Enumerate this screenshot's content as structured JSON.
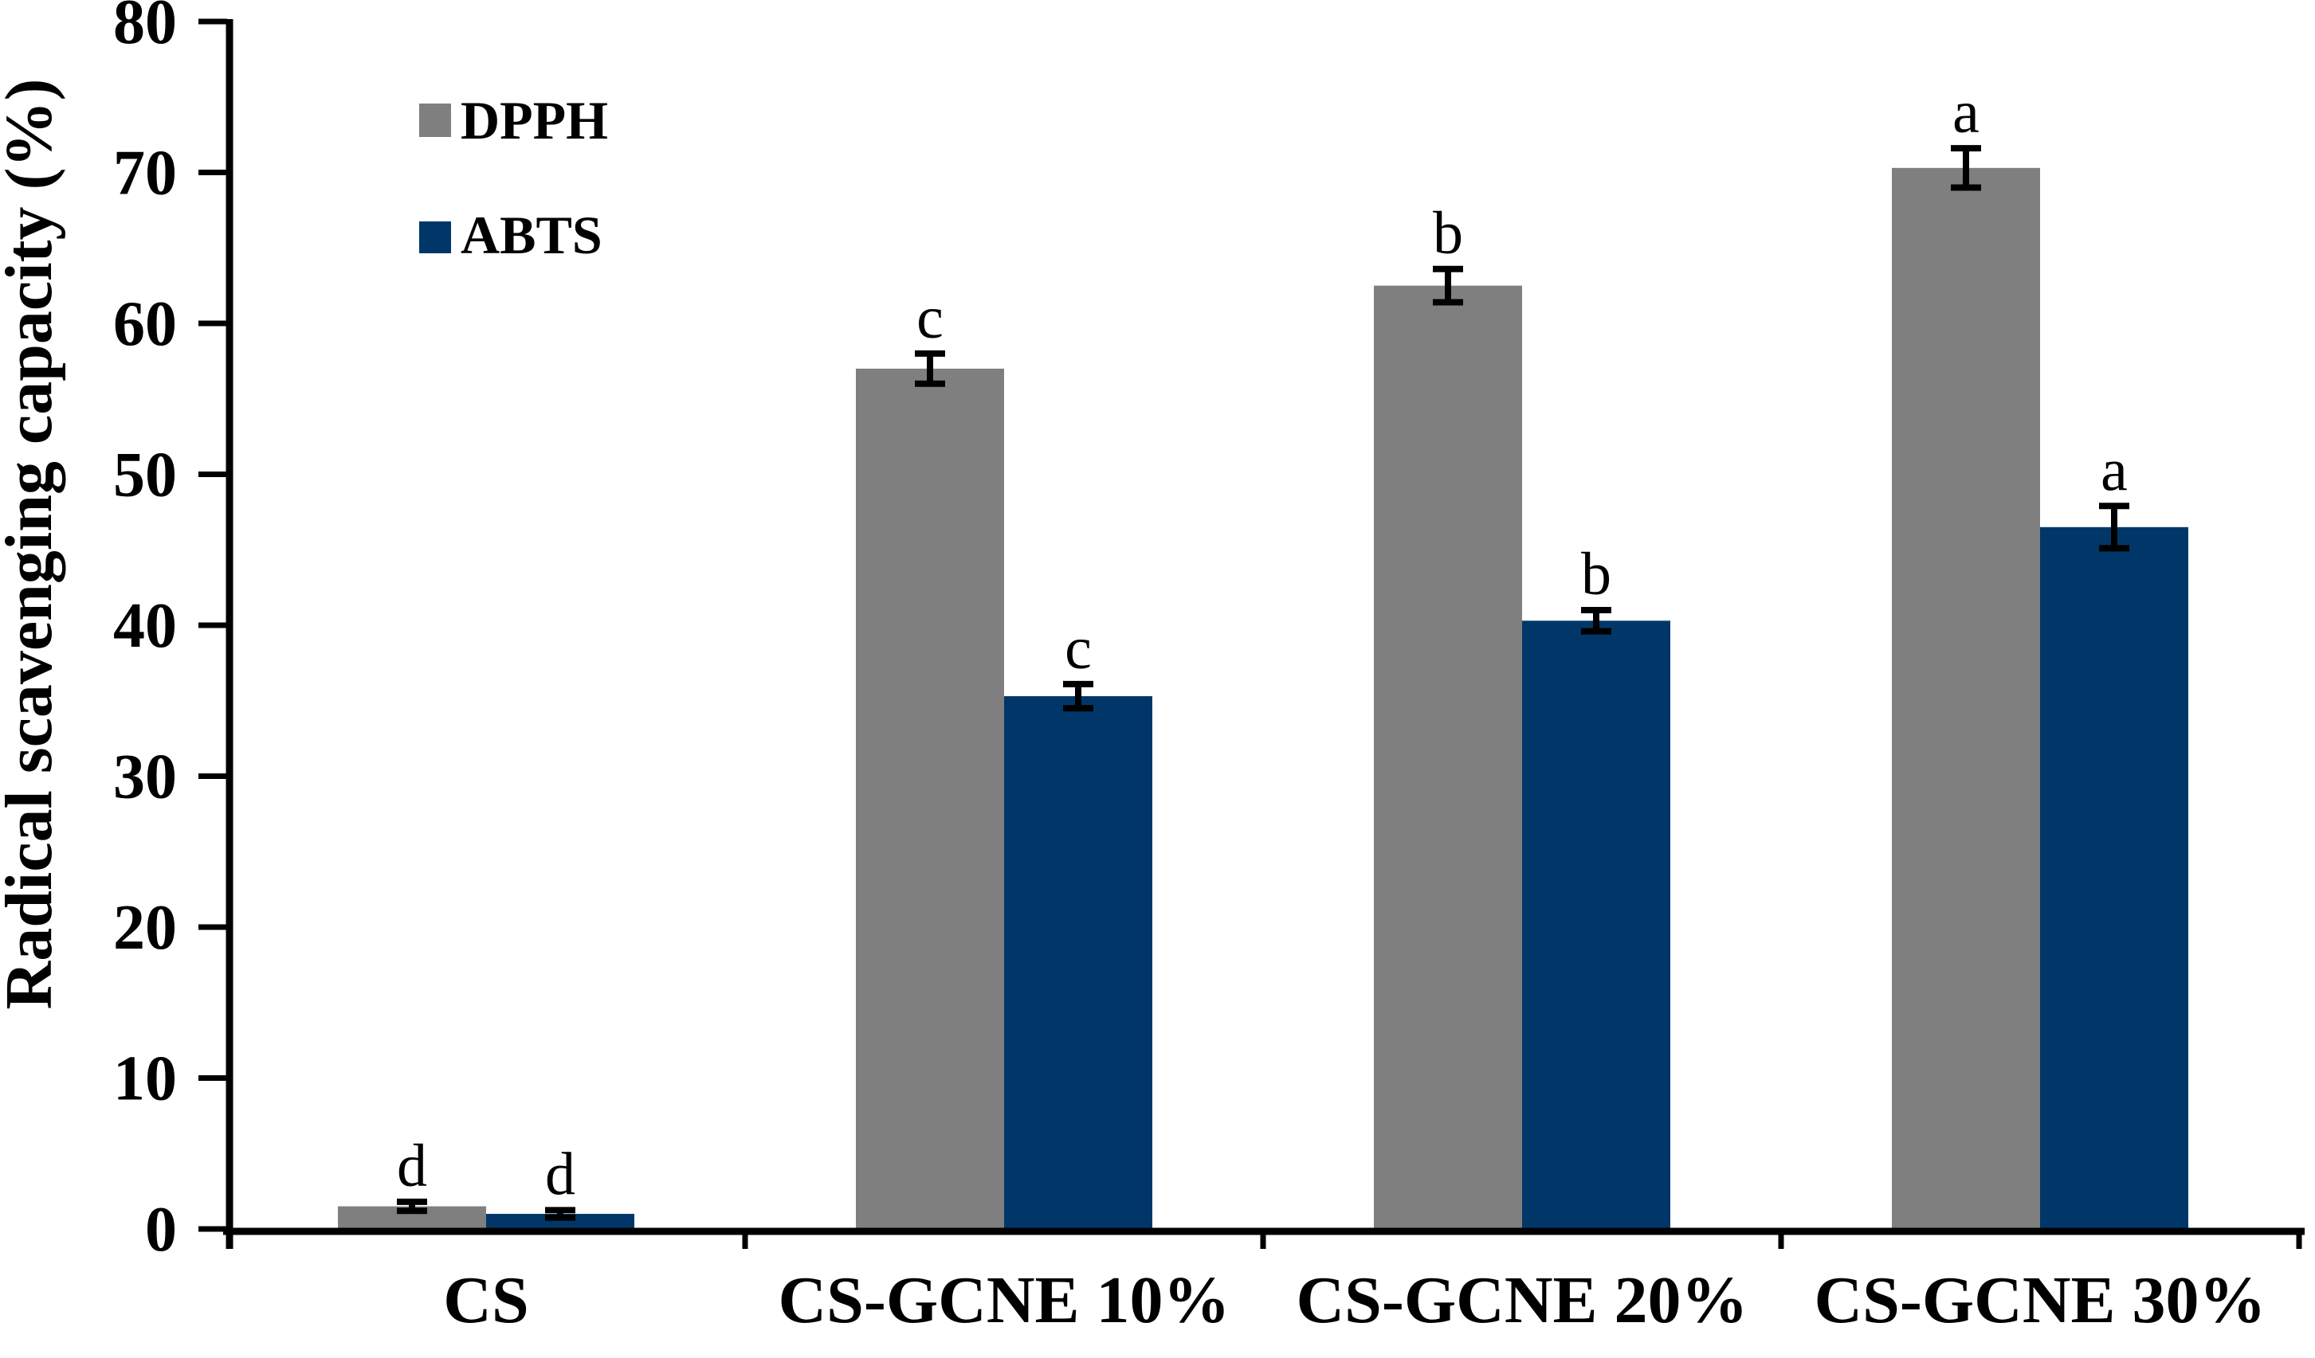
{
  "chart_data": {
    "type": "bar",
    "title": "",
    "xlabel": "",
    "ylabel": "Radical scavenging capacity (%)",
    "ylim": [
      0,
      80
    ],
    "ytick_step": 10,
    "ytick_labels": [
      "0",
      "10",
      "20",
      "30",
      "40",
      "50",
      "60",
      "70",
      "80"
    ],
    "grid": false,
    "legend_position": "upper-left-inside",
    "categories": [
      "CS",
      "CS-GCNE 10%",
      "CS-GCNE 20%",
      "CS-GCNE 30%"
    ],
    "series": [
      {
        "name": "DPPH",
        "color": "#7f7f7f",
        "values": [
          1.5,
          57.0,
          62.5,
          70.3
        ],
        "errors": [
          0.3,
          1.0,
          1.1,
          1.3
        ],
        "sig_letters": [
          "d",
          "c",
          "b",
          "a"
        ]
      },
      {
        "name": "ABTS",
        "color": "#003768",
        "values": [
          1.0,
          35.3,
          40.3,
          46.5
        ],
        "errors": [
          0.25,
          0.8,
          0.7,
          1.4
        ],
        "sig_letters": [
          "d",
          "c",
          "b",
          "a"
        ]
      }
    ],
    "error_bar_color": "#000000",
    "axis_color": "#000000"
  }
}
